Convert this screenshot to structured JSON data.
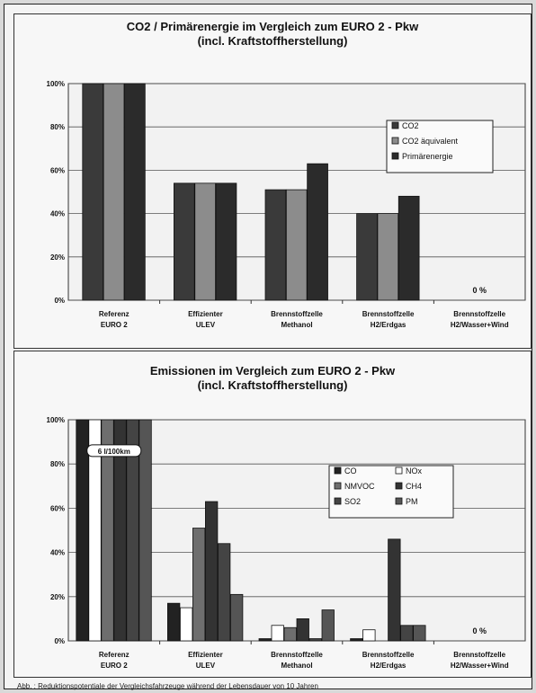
{
  "chart_data": [
    {
      "type": "bar",
      "title": "CO2 / Primärenergie im Vergleich zum EURO 2 - Pkw",
      "subtitle": "(incl. Kraftstoffherstellung)",
      "categories": [
        [
          "Referenz",
          "EURO 2"
        ],
        [
          "Effizienter",
          "ULEV"
        ],
        [
          "Brennstoffzelle",
          "Methanol"
        ],
        [
          "Brennstoffzelle",
          "H2/Erdgas"
        ],
        [
          "Brennstoffzelle",
          "H2/Wasser+Wind"
        ]
      ],
      "series": [
        {
          "name": "CO2",
          "color": "#3a3a3a",
          "values": [
            100,
            54,
            51,
            40,
            0
          ]
        },
        {
          "name": "CO2 äquivalent",
          "color": "#8c8c8c",
          "values": [
            100,
            54,
            51,
            40,
            0
          ]
        },
        {
          "name": "Primärenergie",
          "color": "#2b2b2b",
          "values": [
            100,
            54,
            63,
            48,
            0
          ]
        }
      ],
      "yticks": [
        "0%",
        "20%",
        "40%",
        "60%",
        "80%",
        "100%"
      ],
      "ylim": [
        0,
        100
      ],
      "annotations": [
        {
          "category": 4,
          "text": "0 %"
        }
      ],
      "grid": true,
      "legend": "right"
    },
    {
      "type": "bar",
      "title": "Emissionen im Vergleich zum EURO 2 - Pkw",
      "subtitle": "(incl. Kraftstoffherstellung)",
      "categories": [
        [
          "Referenz",
          "EURO 2"
        ],
        [
          "Effizienter",
          "ULEV"
        ],
        [
          "Brennstoffzelle",
          "Methanol"
        ],
        [
          "Brennstoffzelle",
          "H2/Erdgas"
        ],
        [
          "Brennstoffzelle",
          "H2/Wasser+Wind"
        ]
      ],
      "series": [
        {
          "name": "CO",
          "color": "#222222",
          "values": [
            100,
            17,
            1,
            1,
            0
          ]
        },
        {
          "name": "NOx",
          "color": "#ffffff",
          "values": [
            100,
            15,
            7,
            5,
            0
          ]
        },
        {
          "name": "NMVOC",
          "color": "#6e6e6e",
          "values": [
            100,
            51,
            6,
            0,
            0
          ]
        },
        {
          "name": "CH4",
          "color": "#333333",
          "values": [
            100,
            63,
            10,
            46,
            0
          ]
        },
        {
          "name": "SO2",
          "color": "#444444",
          "values": [
            100,
            44,
            1,
            7,
            0
          ]
        },
        {
          "name": "PM",
          "color": "#555555",
          "values": [
            100,
            21,
            14,
            7,
            0
          ]
        }
      ],
      "yticks": [
        "0%",
        "20%",
        "40%",
        "60%",
        "80%",
        "100%"
      ],
      "ylim": [
        0,
        100
      ],
      "annotations": [
        {
          "category": 0,
          "text": "6 l/100km"
        },
        {
          "category": 4,
          "text": "0 %"
        }
      ],
      "grid": true,
      "legend": "right"
    }
  ],
  "caption": "Abb. : Reduktionspotentiale der Vergleichsfahrzeuge während der Lebensdauer von 10 Jahren"
}
